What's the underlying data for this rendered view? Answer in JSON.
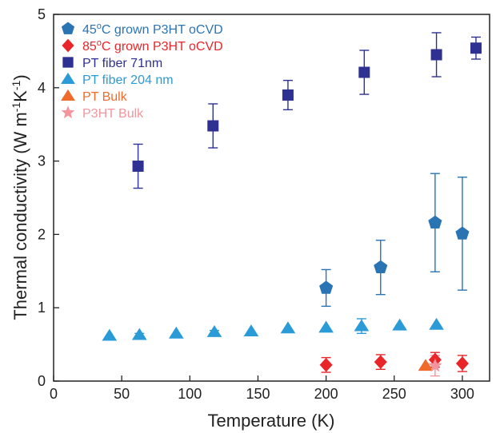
{
  "chart_data": {
    "type": "scatter",
    "xlabel": "Temperature (K)",
    "ylabel_parts": [
      "Thermal conductivity (W m",
      "-1",
      "K",
      "-1",
      ")"
    ],
    "xlim": [
      0,
      320
    ],
    "ylim": [
      0,
      5
    ],
    "x_ticks": [
      0,
      50,
      100,
      150,
      200,
      250,
      300
    ],
    "y_ticks": [
      0,
      1,
      2,
      3,
      4,
      5
    ],
    "legend_position": "top-left",
    "series": [
      {
        "legend_parts": [
          "45",
          "o",
          "C grown P3HT oCVD"
        ],
        "marker": "pentagon",
        "color": "#2a74b3",
        "points": [
          {
            "x": 200,
            "y": 1.27,
            "err": 0.25
          },
          {
            "x": 240,
            "y": 1.55,
            "err": 0.37
          },
          {
            "x": 280,
            "y": 2.16,
            "err": 0.67
          },
          {
            "x": 300,
            "y": 2.01,
            "err": 0.77
          }
        ]
      },
      {
        "legend_parts": [
          "85",
          "o",
          "C grown P3HT oCVD"
        ],
        "marker": "diamond",
        "color": "#e8262a",
        "points": [
          {
            "x": 200,
            "y": 0.22,
            "err": 0.1
          },
          {
            "x": 240,
            "y": 0.26,
            "err": 0.1
          },
          {
            "x": 280,
            "y": 0.29,
            "err": 0.1
          },
          {
            "x": 300,
            "y": 0.24,
            "err": 0.11
          }
        ]
      },
      {
        "legend_parts": [
          "PT fiber 71nm"
        ],
        "marker": "square",
        "color": "#2e3192",
        "points": [
          {
            "x": 62,
            "y": 2.93,
            "err": 0.3
          },
          {
            "x": 117,
            "y": 3.48,
            "err": 0.3
          },
          {
            "x": 172,
            "y": 3.9,
            "err": 0.2
          },
          {
            "x": 228,
            "y": 4.21,
            "err": 0.3
          },
          {
            "x": 281,
            "y": 4.45,
            "err": 0.3
          },
          {
            "x": 310,
            "y": 4.54,
            "err": 0.15
          }
        ]
      },
      {
        "legend_parts": [
          "PT fiber 204 nm"
        ],
        "marker": "triangle",
        "color": "#2b9bd8",
        "points": [
          {
            "x": 41,
            "y": 0.62,
            "err": 0
          },
          {
            "x": 63,
            "y": 0.63,
            "err": 0.02
          },
          {
            "x": 90,
            "y": 0.65,
            "err": 0
          },
          {
            "x": 118,
            "y": 0.67,
            "err": 0.02
          },
          {
            "x": 145,
            "y": 0.68,
            "err": 0
          },
          {
            "x": 172,
            "y": 0.72,
            "err": 0
          },
          {
            "x": 200,
            "y": 0.73,
            "err": 0
          },
          {
            "x": 226,
            "y": 0.75,
            "err": 0.1
          },
          {
            "x": 254,
            "y": 0.76,
            "err": 0
          },
          {
            "x": 281,
            "y": 0.77,
            "err": 0
          }
        ]
      },
      {
        "legend_parts": [
          "PT Bulk"
        ],
        "marker": "triangle",
        "color": "#f06b2b",
        "points": [
          {
            "x": 273,
            "y": 0.21,
            "err": 0
          }
        ]
      },
      {
        "legend_parts": [
          "P3HT Bulk"
        ],
        "marker": "star",
        "color": "#f4949c",
        "points": [
          {
            "x": 280,
            "y": 0.21,
            "err": 0.14
          }
        ]
      }
    ]
  }
}
